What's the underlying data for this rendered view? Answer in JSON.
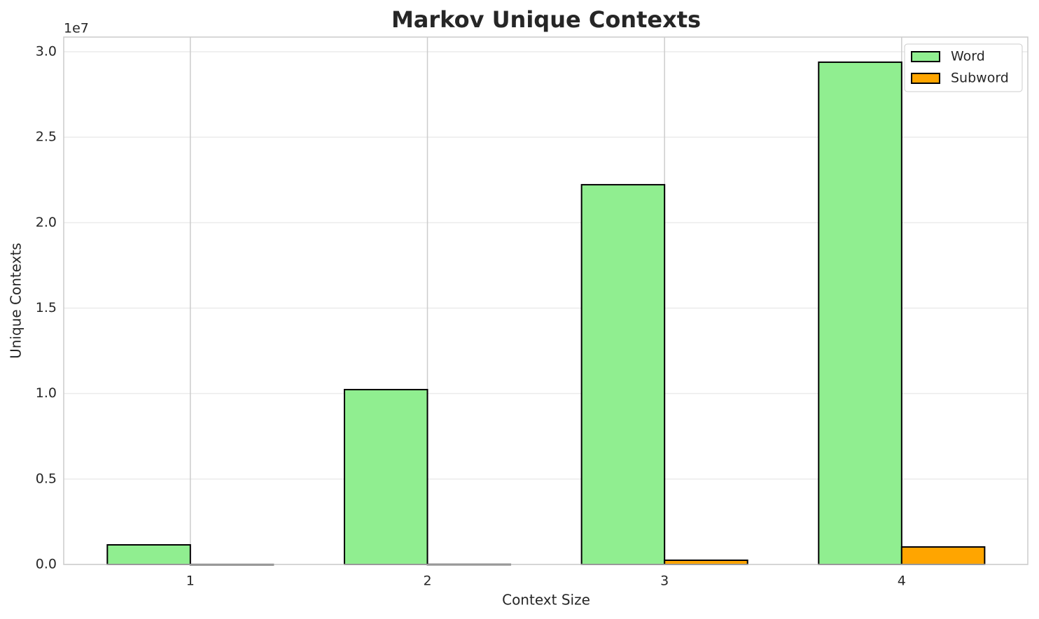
{
  "chart_data": {
    "type": "bar",
    "title": "Markov Unique Contexts",
    "x_label": "Context Size",
    "y_label": "Unique Contexts",
    "y_offset_label": "1e7",
    "x": [
      1,
      2,
      3,
      4
    ],
    "series": [
      {
        "name": "Word",
        "color": "#90ee90",
        "values": [
          1146000,
          10230000,
          22220000,
          29390000
        ]
      },
      {
        "name": "Subword",
        "color": "#ffa500",
        "values": [
          4000,
          8000,
          246000,
          1023000
        ]
      }
    ],
    "xlim": [
      0.466,
      4.532
    ],
    "xticks": [
      1,
      2,
      3,
      4
    ],
    "ylim": [
      0,
      30860000
    ],
    "yticks": [
      {
        "value": 0,
        "label": "0.0"
      },
      {
        "value": 5000000,
        "label": "0.5"
      },
      {
        "value": 10000000,
        "label": "1.0"
      },
      {
        "value": 15000000,
        "label": "1.5"
      },
      {
        "value": 20000000,
        "label": "2.0"
      },
      {
        "value": 25000000,
        "label": "2.5"
      },
      {
        "value": 30000000,
        "label": "3.0"
      }
    ],
    "grid": true,
    "legend": "upper right"
  }
}
